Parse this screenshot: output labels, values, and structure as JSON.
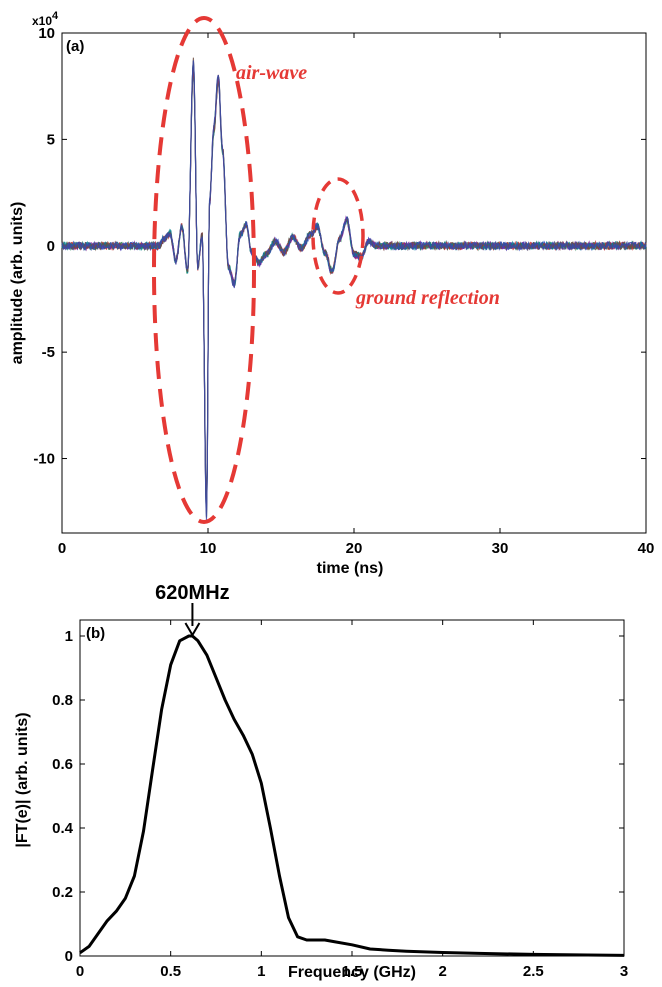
{
  "chart_data": [
    {
      "type": "line",
      "panel_label": "(a)",
      "xlabel": "time (ns)",
      "ylabel": "amplitude (arb. units)",
      "y_exponent": "x10",
      "y_exponent_power": "4",
      "xlim": [
        0,
        40
      ],
      "ylim": [
        -13.5,
        10
      ],
      "x_ticks": [
        0,
        10,
        20,
        30,
        40
      ],
      "x_tick_labels": [
        "0",
        "10",
        "20",
        "30",
        "40"
      ],
      "y_ticks": [
        -10,
        -5,
        0,
        5,
        10
      ],
      "y_tick_labels": [
        "-10",
        "-5",
        "0",
        "5",
        "10"
      ],
      "grid": false,
      "series": [
        {
          "x": [
            0,
            6.6,
            7.0,
            7.4,
            7.8,
            8.2,
            8.6,
            9.0,
            9.3,
            9.6,
            9.9,
            10.1,
            10.4,
            10.7,
            11.0,
            11.4,
            11.8,
            12.2,
            12.6,
            13.0,
            13.5,
            14.0,
            14.6,
            15.2,
            15.8,
            16.4,
            17.0,
            17.5,
            18.0,
            18.5,
            19.0,
            19.5,
            20.0,
            20.5,
            21.0,
            21.5,
            40
          ],
          "y": [
            0,
            0,
            0.3,
            0.6,
            -0.7,
            0.9,
            -1.2,
            8.5,
            -1.0,
            0.5,
            -12.5,
            2.0,
            5.5,
            7.9,
            4.5,
            -1.0,
            -1.8,
            0.5,
            1.0,
            -0.3,
            -0.8,
            -0.4,
            0.2,
            -0.3,
            0.4,
            -0.1,
            0.5,
            0.9,
            -0.3,
            -1.2,
            0.3,
            1.2,
            -0.4,
            -0.5,
            0.2,
            0,
            0
          ]
        }
      ],
      "annotations": [
        {
          "text": "air-wave",
          "color": "#e53935"
        },
        {
          "text": "ground reflection",
          "color": "#e53935"
        }
      ]
    },
    {
      "type": "line",
      "panel_label": "(b)",
      "xlabel": "Frequency (GHz)",
      "ylabel": "|FT(e)| (arb. units)",
      "xlim": [
        0,
        3
      ],
      "ylim": [
        0,
        1.05
      ],
      "x_ticks": [
        0,
        0.5,
        1,
        1.5,
        2,
        2.5,
        3
      ],
      "x_tick_labels": [
        "0",
        "0.5",
        "1",
        "1.5",
        "2",
        "2.5",
        "3"
      ],
      "y_ticks": [
        0,
        0.2,
        0.4,
        0.6,
        0.8,
        1
      ],
      "y_tick_labels": [
        "0",
        "0.2",
        "0.4",
        "0.6",
        "0.8",
        "1"
      ],
      "grid": false,
      "series": [
        {
          "x": [
            0,
            0.05,
            0.1,
            0.15,
            0.2,
            0.25,
            0.3,
            0.35,
            0.4,
            0.45,
            0.5,
            0.55,
            0.6,
            0.62,
            0.65,
            0.7,
            0.75,
            0.8,
            0.85,
            0.9,
            0.95,
            1.0,
            1.05,
            1.1,
            1.15,
            1.2,
            1.25,
            1.3,
            1.35,
            1.4,
            1.5,
            1.6,
            1.7,
            1.8,
            2.0,
            2.2,
            2.5,
            2.8,
            3.0
          ],
          "y": [
            0.01,
            0.03,
            0.07,
            0.11,
            0.14,
            0.18,
            0.25,
            0.39,
            0.58,
            0.77,
            0.91,
            0.985,
            1.0,
            1.0,
            0.985,
            0.94,
            0.87,
            0.8,
            0.74,
            0.69,
            0.63,
            0.54,
            0.4,
            0.25,
            0.12,
            0.06,
            0.05,
            0.05,
            0.05,
            0.045,
            0.035,
            0.022,
            0.018,
            0.015,
            0.011,
            0.008,
            0.005,
            0.003,
            0.002
          ]
        }
      ],
      "annotations": [
        {
          "text": "620MHz",
          "x": 0.62
        }
      ]
    }
  ]
}
